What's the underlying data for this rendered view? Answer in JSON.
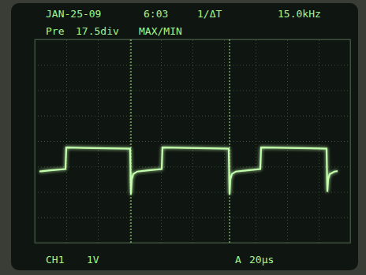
{
  "chart_data": {
    "type": "line",
    "annotations": [
      "JAN-25-09",
      "6:03",
      "1/ΔT",
      "15.0kHz",
      "Pre",
      "17.5div",
      "MAX/MIN",
      "CH1",
      "1V",
      "A",
      "20μs"
    ],
    "xlim": [
      0,
      200
    ],
    "xticks": [
      0,
      20,
      40,
      60,
      80,
      100,
      120,
      140,
      160,
      180,
      200
    ],
    "ylim": [
      -4,
      4
    ],
    "yticks": [
      -4,
      -3,
      -2,
      -1,
      0,
      1,
      2,
      3,
      4
    ],
    "grid": true,
    "tick_labels": false,
    "cursors": [
      61,
      123.5
    ],
    "series": [
      {
        "color": "#c4ffae",
        "x": [
          3,
          10,
          19.5,
          20,
          30,
          45,
          60.5,
          61,
          61.5,
          62.5,
          65,
          72,
          80.5,
          81,
          95,
          110,
          123,
          123.5,
          124,
          125,
          127.5,
          135,
          143,
          143.5,
          160,
          175,
          185,
          185.5,
          186,
          187,
          190,
          192
        ],
        "values": [
          -1.2,
          -1.15,
          -1.1,
          -0.25,
          -0.27,
          -0.28,
          -0.3,
          -2.1,
          -1.5,
          -1.3,
          -1.2,
          -1.15,
          -1.1,
          -0.25,
          -0.27,
          -0.28,
          -0.3,
          -2.1,
          -1.5,
          -1.3,
          -1.2,
          -1.15,
          -1.1,
          -0.25,
          -0.27,
          -0.28,
          -0.3,
          -2.0,
          -1.5,
          -1.3,
          -1.2,
          -1.18
        ]
      }
    ]
  }
}
